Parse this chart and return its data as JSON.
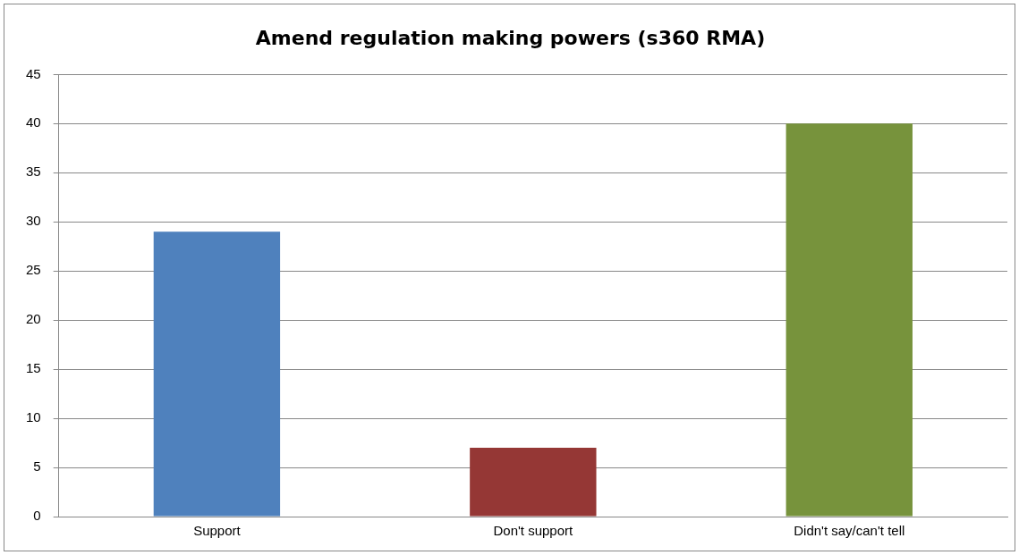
{
  "chart_data": {
    "type": "bar",
    "title": "Amend regulation making powers (s360 RMA)",
    "categories": [
      "Support",
      "Don't support",
      "Didn't say/can't tell"
    ],
    "values": [
      29,
      7,
      40
    ],
    "colors": [
      "#4f81bd",
      "#953735",
      "#77933c"
    ],
    "ylim": [
      0,
      45
    ],
    "yticks": [
      0,
      5,
      10,
      15,
      20,
      25,
      30,
      35,
      40,
      45
    ],
    "grid": "y",
    "legend": false
  }
}
